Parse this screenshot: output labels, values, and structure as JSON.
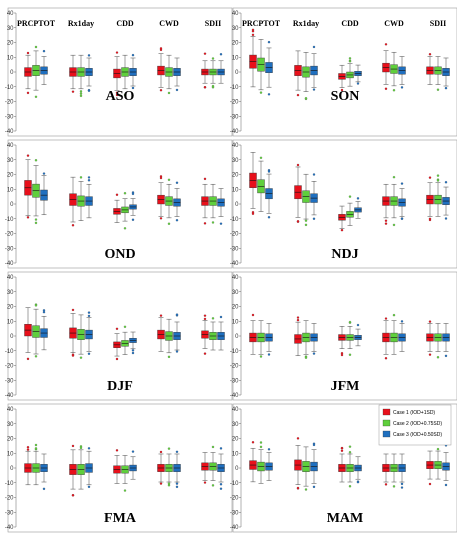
{
  "chart_data": {
    "type": "boxplot",
    "ylim": [
      -40,
      40
    ],
    "yticks": [
      -40,
      -30,
      -20,
      -10,
      0,
      10,
      20,
      30,
      40
    ],
    "indices": [
      "PRCPTOT",
      "Rx1day",
      "CDD",
      "CWD",
      "SDII"
    ],
    "legend": {
      "position": "right of JFM panel",
      "entries": [
        {
          "label": "Case 1 (IOD+1SD)",
          "color": "#e8101b"
        },
        {
          "label": "Case 2 (IOD+0.75SD)",
          "color": "#5fcf3c"
        },
        {
          "label": "Case 3 (IOD+0.50SD)",
          "color": "#1f6fbf"
        }
      ]
    },
    "panels": [
      {
        "season": "ASO",
        "medians": [
          [
            0,
            1,
            1
          ],
          [
            0,
            0,
            0
          ],
          [
            -1,
            0,
            0
          ],
          [
            1,
            0,
            0
          ],
          [
            0,
            0,
            0
          ]
        ],
        "iqr": [
          [
            6,
            7,
            5
          ],
          [
            6,
            6,
            5
          ],
          [
            6,
            6,
            5
          ],
          [
            6,
            6,
            5
          ],
          [
            4,
            4,
            4
          ]
        ]
      },
      {
        "season": "SON",
        "medians": [
          [
            7,
            5,
            3
          ],
          [
            1,
            0,
            1
          ],
          [
            -3,
            -2,
            -1
          ],
          [
            3,
            2,
            1
          ],
          [
            1,
            1,
            0
          ]
        ],
        "iqr": [
          [
            9,
            9,
            7
          ],
          [
            7,
            7,
            6
          ],
          [
            4,
            4,
            3
          ],
          [
            6,
            6,
            5
          ],
          [
            5,
            5,
            5
          ]
        ]
      },
      {
        "season": "OND",
        "medians": [
          [
            11,
            9,
            6
          ],
          [
            3,
            2,
            2
          ],
          [
            -5,
            -4,
            -2
          ],
          [
            3,
            2,
            1
          ],
          [
            2,
            2,
            1
          ]
        ],
        "iqr": [
          [
            10,
            9,
            7
          ],
          [
            8,
            7,
            6
          ],
          [
            4,
            4,
            3
          ],
          [
            6,
            6,
            5
          ],
          [
            6,
            6,
            5
          ]
        ]
      },
      {
        "season": "NDJ",
        "medians": [
          [
            16,
            12,
            7
          ],
          [
            8,
            5,
            4
          ],
          [
            -9,
            -7,
            -4
          ],
          [
            2,
            2,
            1
          ],
          [
            3,
            3,
            2
          ]
        ],
        "iqr": [
          [
            10,
            9,
            7
          ],
          [
            9,
            8,
            6
          ],
          [
            4,
            4,
            3
          ],
          [
            6,
            6,
            5
          ],
          [
            6,
            6,
            5
          ]
        ]
      },
      {
        "season": "DJF",
        "medians": [
          [
            4,
            3,
            2
          ],
          [
            2,
            1,
            1
          ],
          [
            -6,
            -5,
            -3
          ],
          [
            1,
            0,
            0
          ],
          [
            1,
            0,
            0
          ]
        ],
        "iqr": [
          [
            8,
            8,
            6
          ],
          [
            7,
            7,
            6
          ],
          [
            4,
            4,
            3
          ],
          [
            6,
            6,
            5
          ],
          [
            5,
            5,
            5
          ]
        ]
      },
      {
        "season": "JFM",
        "medians": [
          [
            -1,
            -1,
            -1
          ],
          [
            -2,
            -1,
            -1
          ],
          [
            -1,
            -1,
            -1
          ],
          [
            -1,
            -1,
            -1
          ],
          [
            -1,
            -1,
            -1
          ]
        ],
        "iqr": [
          [
            6,
            6,
            5
          ],
          [
            6,
            6,
            5
          ],
          [
            4,
            4,
            3
          ],
          [
            6,
            6,
            5
          ],
          [
            5,
            5,
            5
          ]
        ]
      },
      {
        "season": "FMA",
        "medians": [
          [
            0,
            0,
            0
          ],
          [
            -1,
            -1,
            0
          ],
          [
            -1,
            -1,
            0
          ],
          [
            0,
            0,
            0
          ],
          [
            1,
            1,
            0
          ]
        ],
        "iqr": [
          [
            6,
            6,
            5
          ],
          [
            7,
            7,
            6
          ],
          [
            5,
            5,
            4
          ],
          [
            5,
            5,
            5
          ],
          [
            5,
            5,
            5
          ]
        ]
      },
      {
        "season": "MAM",
        "medians": [
          [
            2,
            1,
            1
          ],
          [
            2,
            1,
            1
          ],
          [
            0,
            0,
            0
          ],
          [
            0,
            0,
            0
          ],
          [
            2,
            2,
            1
          ]
        ],
        "iqr": [
          [
            6,
            6,
            5
          ],
          [
            7,
            7,
            6
          ],
          [
            5,
            5,
            4
          ],
          [
            5,
            5,
            5
          ],
          [
            5,
            5,
            5
          ]
        ]
      }
    ]
  }
}
